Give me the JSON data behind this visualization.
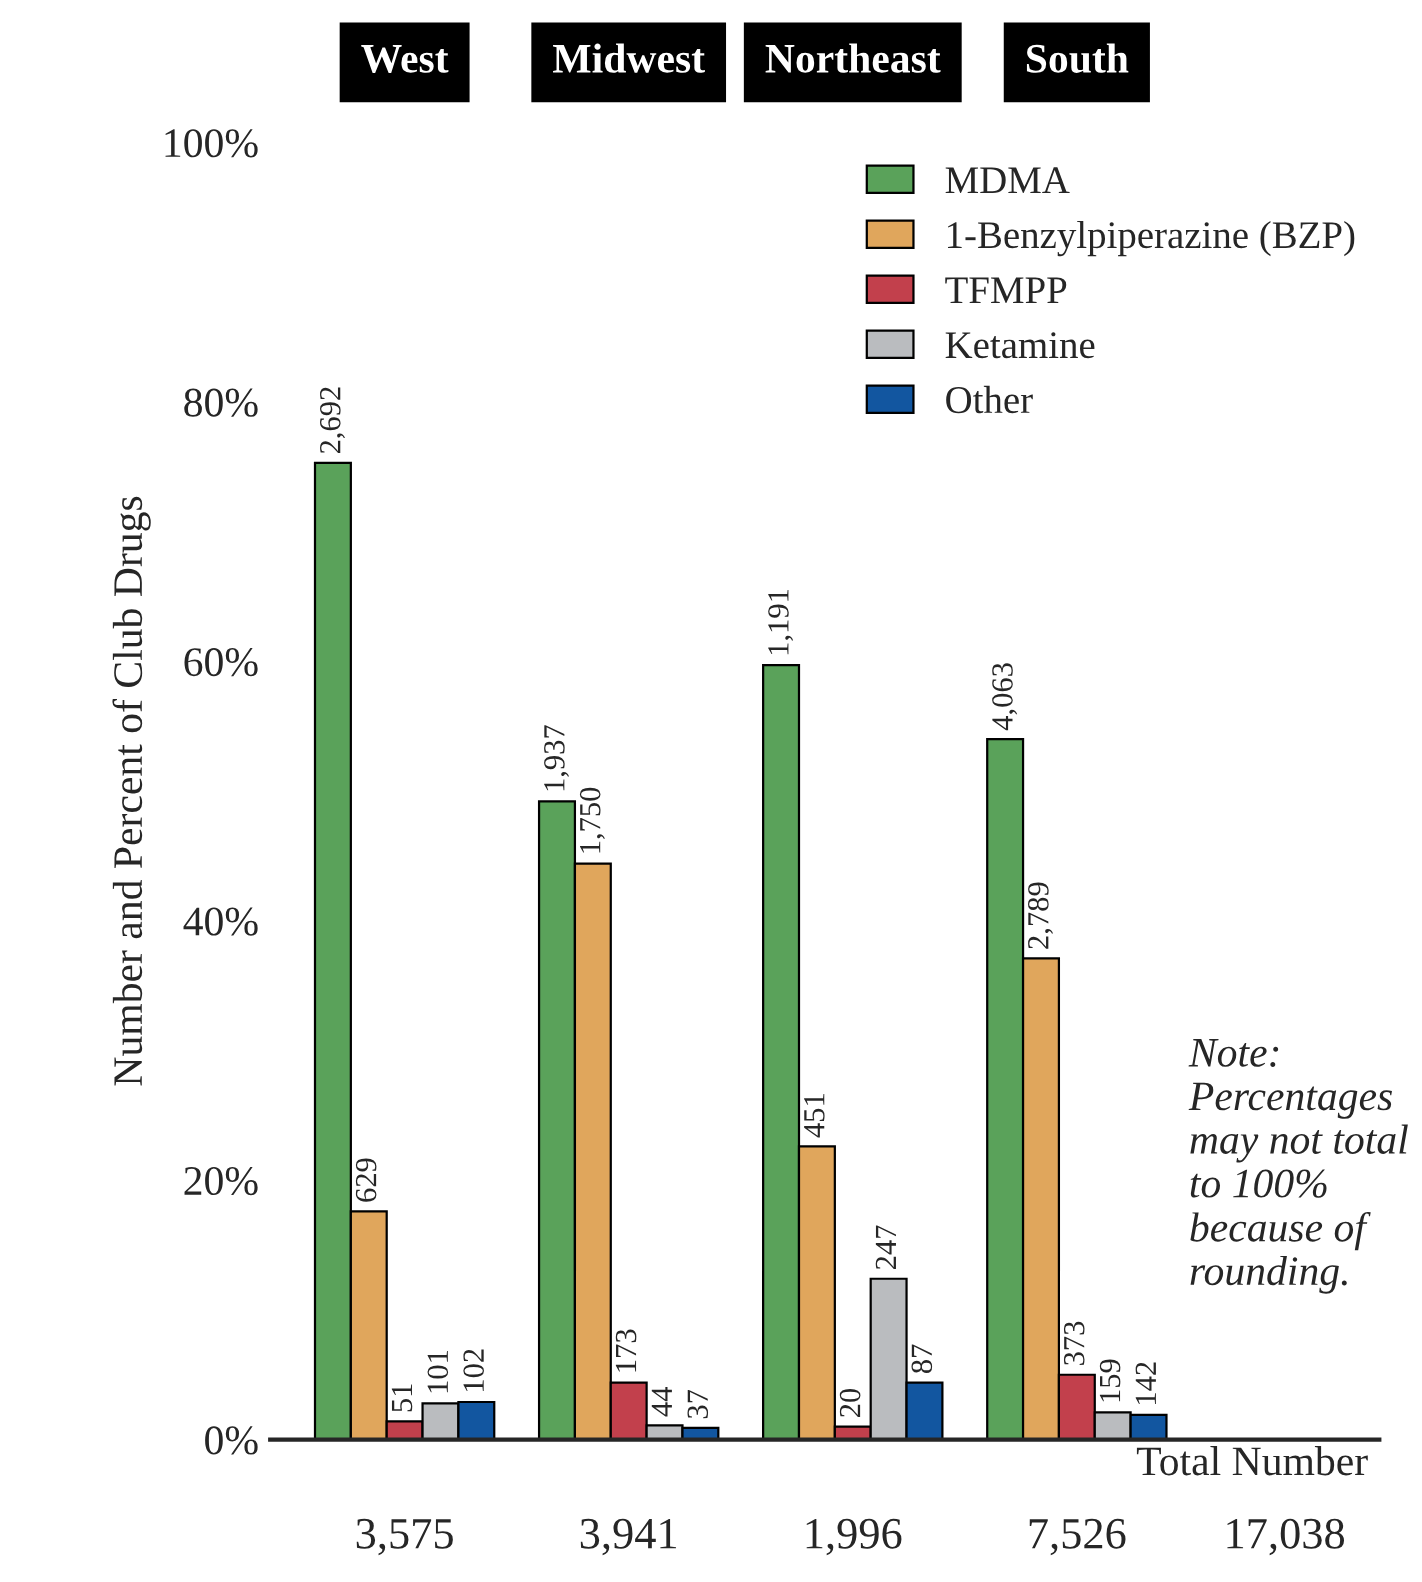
{
  "chart_data": {
    "type": "bar",
    "ylabel": "Number and Percent of Club Drugs",
    "categories": [
      "West",
      "Midwest",
      "Northeast",
      "South"
    ],
    "series": [
      {
        "name": "MDMA",
        "color": "#5aa25a",
        "values": [
          75.3,
          49.2,
          59.7,
          54.0
        ]
      },
      {
        "name": "1-Benzylpiperazine (BZP)",
        "color": "#e0a65c",
        "values": [
          17.6,
          44.4,
          22.6,
          37.1
        ]
      },
      {
        "name": "TFMPP",
        "color": "#c2404c",
        "values": [
          1.4,
          4.4,
          1.0,
          5.0
        ]
      },
      {
        "name": "Ketamine",
        "color": "#babcbf",
        "values": [
          2.8,
          1.1,
          12.4,
          2.1
        ]
      },
      {
        "name": "Other",
        "color": "#1256a0",
        "values": [
          2.9,
          0.9,
          4.4,
          1.9
        ]
      }
    ],
    "ylim": [
      0,
      100
    ],
    "yticks": [
      {
        "value": 0,
        "label": "0%"
      },
      {
        "value": 20,
        "label": "20%"
      },
      {
        "value": 40,
        "label": "40%"
      },
      {
        "value": 60,
        "label": "60%"
      },
      {
        "value": 80,
        "label": "80%"
      },
      {
        "value": 100,
        "label": "100%"
      }
    ],
    "annotations": [
      "Note: Percentages may not total to 100% because of rounding.",
      "Total Number",
      "17,038",
      "3,575",
      "3,941",
      "1,996",
      "7,526",
      "2,692",
      "1,937",
      "1,191",
      "4,063",
      "629",
      "1,750",
      "451",
      "2,789",
      "51",
      "173",
      "20",
      "373",
      "101",
      "44",
      "247",
      "159",
      "102",
      "37",
      "87",
      "142"
    ],
    "legend": "top right",
    "grid": false
  }
}
